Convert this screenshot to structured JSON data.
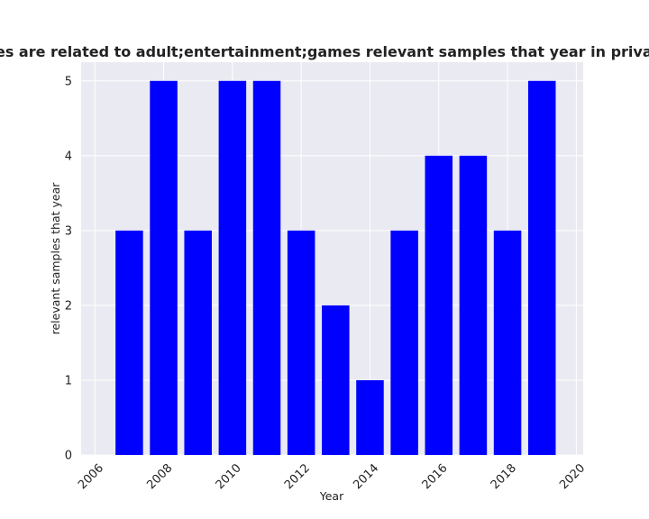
{
  "chart_data": {
    "type": "bar",
    "title": "Categories are related to adult;entertainment;games relevant samples that year in privacy policies",
    "xlabel": "Year",
    "ylabel": "relevant samples that year",
    "x": [
      2007,
      2008,
      2009,
      2010,
      2011,
      2012,
      2013,
      2014,
      2015,
      2016,
      2017,
      2018,
      2019
    ],
    "values": [
      3,
      5,
      3,
      5,
      5,
      3,
      2,
      1,
      3,
      4,
      4,
      3,
      5
    ],
    "xlim": [
      2005.6,
      2020.2
    ],
    "ylim": [
      0,
      5.25
    ],
    "xticks": [
      "2006",
      "2008",
      "2010",
      "2012",
      "2014",
      "2016",
      "2018",
      "2020"
    ],
    "yticks": [
      "0",
      "1",
      "2",
      "3",
      "4",
      "5"
    ],
    "bar_color": "#0000ff",
    "background_color": "#eaeaf2",
    "grid": true
  }
}
